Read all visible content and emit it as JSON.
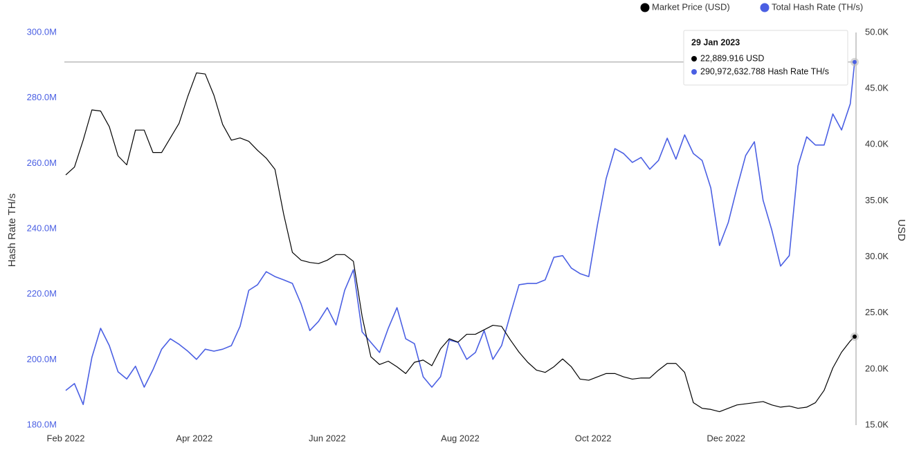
{
  "chart_data": {
    "type": "line",
    "y_label": "Hash Rate TH/s",
    "y2_label": "USD",
    "x": [
      "2022-02-01",
      "2022-02-05",
      "2022-02-09",
      "2022-02-13",
      "2022-02-17",
      "2022-02-21",
      "2022-02-25",
      "2022-03-01",
      "2022-03-05",
      "2022-03-09",
      "2022-03-13",
      "2022-03-17",
      "2022-03-21",
      "2022-03-25",
      "2022-03-29",
      "2022-04-02",
      "2022-04-06",
      "2022-04-10",
      "2022-04-14",
      "2022-04-18",
      "2022-04-22",
      "2022-04-26",
      "2022-04-30",
      "2022-05-04",
      "2022-05-08",
      "2022-05-12",
      "2022-05-16",
      "2022-05-20",
      "2022-05-24",
      "2022-05-28",
      "2022-06-01",
      "2022-06-05",
      "2022-06-09",
      "2022-06-13",
      "2022-06-17",
      "2022-06-21",
      "2022-06-25",
      "2022-06-29",
      "2022-07-03",
      "2022-07-07",
      "2022-07-11",
      "2022-07-15",
      "2022-07-19",
      "2022-07-23",
      "2022-07-27",
      "2022-07-31",
      "2022-08-04",
      "2022-08-08",
      "2022-08-12",
      "2022-08-16",
      "2022-08-20",
      "2022-08-24",
      "2022-08-28",
      "2022-09-01",
      "2022-09-05",
      "2022-09-09",
      "2022-09-13",
      "2022-09-17",
      "2022-09-21",
      "2022-09-25",
      "2022-09-29",
      "2022-10-03",
      "2022-10-07",
      "2022-10-11",
      "2022-10-15",
      "2022-10-19",
      "2022-10-23",
      "2022-10-27",
      "2022-10-31",
      "2022-11-04",
      "2022-11-08",
      "2022-11-12",
      "2022-11-16",
      "2022-11-20",
      "2022-11-24",
      "2022-11-28",
      "2022-12-02",
      "2022-12-06",
      "2022-12-10",
      "2022-12-14",
      "2022-12-18",
      "2022-12-22",
      "2022-12-26",
      "2022-12-30",
      "2023-01-03",
      "2023-01-07",
      "2023-01-11",
      "2023-01-15",
      "2023-01-19",
      "2023-01-23",
      "2023-01-27",
      "2023-01-29"
    ],
    "series": [
      {
        "name": "Market Price (USD)",
        "color": "#000000",
        "axis": "y2",
        "values": [
          37300,
          38000,
          40400,
          43100,
          43000,
          41600,
          39000,
          38200,
          41300,
          41300,
          39300,
          39300,
          40600,
          41900,
          44300,
          46400,
          46300,
          44400,
          41800,
          40400,
          40600,
          40300,
          39500,
          38800,
          37800,
          33800,
          30400,
          29700,
          29500,
          29400,
          29700,
          30200,
          30200,
          29600,
          24700,
          21100,
          20400,
          20700,
          20200,
          19600,
          20600,
          20800,
          20300,
          21800,
          22700,
          22400,
          23100,
          23100,
          23500,
          23900,
          23800,
          22600,
          21500,
          20600,
          19900,
          19700,
          20200,
          20900,
          20200,
          19100,
          19000,
          19300,
          19600,
          19600,
          19300,
          19100,
          19200,
          19200,
          19900,
          20500,
          20500,
          19700,
          17000,
          16500,
          16400,
          16200,
          16500,
          16800,
          16900,
          17000,
          17100,
          16800,
          16600,
          16700,
          16500,
          16600,
          17000,
          18100,
          20100,
          21500,
          22500,
          22889.916
        ]
      },
      {
        "name": "Total Hash Rate (TH/s)",
        "color": "#4a5fe3",
        "axis": "y",
        "values": [
          190600000,
          192700000,
          186300000,
          200700000,
          209600000,
          204300000,
          196300000,
          194100000,
          198000000,
          191600000,
          196900000,
          203200000,
          206400000,
          204700000,
          202600000,
          200100000,
          203200000,
          202600000,
          203200000,
          204300000,
          210200000,
          221200000,
          222900000,
          226900000,
          225400000,
          224400000,
          223300000,
          217000000,
          208900000,
          211700000,
          215900000,
          210600000,
          221200000,
          227500000,
          208500000,
          205300000,
          202200000,
          209600000,
          215900000,
          206400000,
          204900000,
          194800000,
          191600000,
          194800000,
          206000000,
          205300000,
          200100000,
          202200000,
          208900000,
          200100000,
          204300000,
          213800000,
          222900000,
          223300000,
          223300000,
          224400000,
          231300000,
          231800000,
          228000000,
          226300000,
          225400000,
          241300000,
          255400000,
          264500000,
          263000000,
          260300000,
          261800000,
          258200000,
          260900000,
          267700000,
          261300000,
          268700000,
          263000000,
          260900000,
          252500000,
          234900000,
          241900000,
          252500000,
          262400000,
          266600000,
          248700000,
          239600000,
          228600000,
          231800000,
          259200000,
          268100000,
          265600000,
          265600000,
          275100000,
          270200000,
          278200000,
          290972632.788
        ]
      }
    ],
    "xlim": [
      "2022-02-01",
      "2023-01-29"
    ],
    "xticks": [
      {
        "value": "2022-02-01",
        "label": "Feb 2022"
      },
      {
        "value": "2022-04-01",
        "label": "Apr 2022"
      },
      {
        "value": "2022-06-01",
        "label": "Jun 2022"
      },
      {
        "value": "2022-08-01",
        "label": "Aug 2022"
      },
      {
        "value": "2022-10-01",
        "label": "Oct 2022"
      },
      {
        "value": "2022-12-01",
        "label": "Dec 2022"
      }
    ],
    "ylim": [
      180000000,
      300000000
    ],
    "yticks": [
      {
        "value": 180000000,
        "label": "180.0M"
      },
      {
        "value": 200000000,
        "label": "200.0M"
      },
      {
        "value": 220000000,
        "label": "220.0M"
      },
      {
        "value": 240000000,
        "label": "240.0M"
      },
      {
        "value": 260000000,
        "label": "260.0M"
      },
      {
        "value": 280000000,
        "label": "280.0M"
      },
      {
        "value": 300000000,
        "label": "300.0M"
      }
    ],
    "y2lim": [
      15000,
      50000
    ],
    "y2ticks": [
      {
        "value": 15000,
        "label": "15.0K"
      },
      {
        "value": 20000,
        "label": "20.0K"
      },
      {
        "value": 25000,
        "label": "25.0K"
      },
      {
        "value": 30000,
        "label": "30.0K"
      },
      {
        "value": 35000,
        "label": "35.0K"
      },
      {
        "value": 40000,
        "label": "40.0K"
      },
      {
        "value": 45000,
        "label": "45.0K"
      },
      {
        "value": 50000,
        "label": "50.0K"
      }
    ],
    "grid": false,
    "legend": "top-right",
    "tooltip": {
      "title": "29 Jan 2023",
      "lines": [
        "22,889.916 USD",
        "290,972,632.788 Hash Rate TH/s"
      ]
    }
  }
}
